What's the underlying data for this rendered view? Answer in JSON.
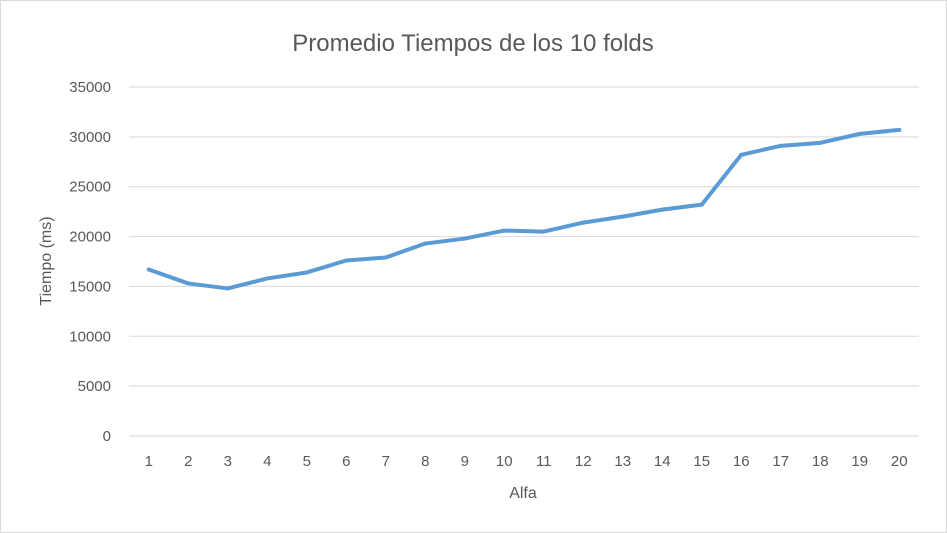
{
  "chart_data": {
    "type": "line",
    "title": "Promedio Tiempos de los 10 folds",
    "xlabel": "Alfa",
    "ylabel": "Tiempo (ms)",
    "categories": [
      "1",
      "2",
      "3",
      "4",
      "5",
      "6",
      "7",
      "8",
      "9",
      "10",
      "11",
      "12",
      "13",
      "14",
      "15",
      "16",
      "17",
      "18",
      "19",
      "20"
    ],
    "series": [
      {
        "values": [
          16700,
          15300,
          14800,
          15800,
          16400,
          17600,
          17900,
          19300,
          19800,
          20600,
          20500,
          21400,
          22000,
          22700,
          23200,
          28200,
          29100,
          29400,
          30300,
          30700
        ],
        "color": "#5b9bd5"
      }
    ],
    "ylim": [
      0,
      35000
    ],
    "yticks": [
      0,
      5000,
      10000,
      15000,
      20000,
      25000,
      30000,
      35000
    ],
    "grid": true,
    "legend": "none"
  }
}
